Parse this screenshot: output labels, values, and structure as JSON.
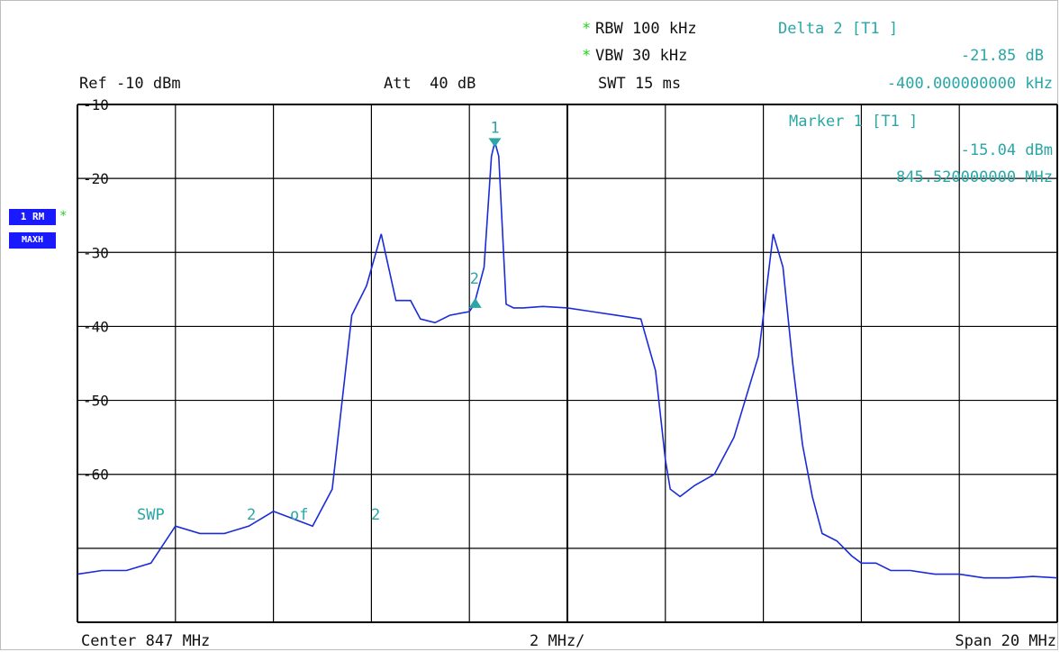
{
  "header": {
    "star1": "*",
    "rbw": "RBW 100 kHz",
    "star2": "*",
    "vbw": "VBW 30 kHz",
    "ref": "Ref -10 dBm",
    "att": "Att  40 dB",
    "swt": "SWT 15 ms",
    "delta_title": "Delta 2 [T1 ]",
    "delta_level": "-21.85 dB",
    "delta_freq": "-400.000000000 kHz"
  },
  "marker1": {
    "title": "Marker 1 [T1 ]",
    "level": "-15.04 dBm",
    "freq": "845.520000000 MHz",
    "label": "1"
  },
  "marker2": {
    "label": "2"
  },
  "side_badges": {
    "trace": "1 RM",
    "star": "*",
    "mode": "MAXH"
  },
  "sweep_text": {
    "swp": "SWP",
    "two": "2",
    "of": "of",
    "total": "2"
  },
  "footer": {
    "center": "Center 847 MHz",
    "div": "2 MHz/",
    "span": "Span 20 MHz"
  },
  "colors": {
    "trace": "#1a2bd8",
    "marker": "#2aa6a6",
    "grid": "#000000",
    "badge": "#1a1aff",
    "star": "#1fd11f"
  },
  "chart_data": {
    "type": "line",
    "title": "",
    "xlabel": "",
    "ylabel": "",
    "x_unit": "MHz",
    "y_unit": "dBm",
    "xlim": [
      837,
      857
    ],
    "ylim": [
      -80,
      -10
    ],
    "y_tick_labels": [
      "-10",
      "-20",
      "-30",
      "-40",
      "-50",
      "-60"
    ],
    "grid": true,
    "series": [
      {
        "x": [
          837.0,
          837.5,
          838.0,
          838.5,
          839.0,
          839.5,
          840.0,
          840.5,
          841.0,
          841.4,
          841.8,
          842.2,
          842.6,
          842.9,
          843.2,
          843.5,
          843.8,
          844.0,
          844.3,
          844.6,
          845.0,
          845.1,
          845.3,
          845.45,
          845.52,
          845.6,
          845.75,
          845.9,
          846.1,
          846.5,
          847.0,
          847.5,
          848.0,
          848.5,
          848.8,
          849.0,
          849.1,
          849.3,
          849.6,
          850.0,
          850.4,
          850.9,
          851.2,
          851.4,
          851.6,
          851.8,
          852.0,
          852.2,
          852.5,
          852.8,
          853.0,
          853.3,
          853.6,
          854.0,
          854.5,
          855.0,
          855.5,
          856.0,
          856.5,
          857.0
        ],
        "y": [
          -73.5,
          -73.0,
          -73.0,
          -72.0,
          -67.0,
          -68.0,
          -68.0,
          -67.0,
          -65.0,
          -66.0,
          -67.0,
          -62.0,
          -38.5,
          -34.5,
          -27.5,
          -36.5,
          -36.5,
          -39.0,
          -39.5,
          -38.5,
          -38.0,
          -37.0,
          -32.0,
          -17.0,
          -15.04,
          -17.0,
          -37.0,
          -37.5,
          -37.5,
          -37.3,
          -37.5,
          -38.0,
          -38.5,
          -39.0,
          -46.0,
          -58.0,
          -62.0,
          -63.0,
          -61.5,
          -60.0,
          -55.0,
          -44.0,
          -27.5,
          -32.0,
          -45.0,
          -56.0,
          -63.0,
          -68.0,
          -69.0,
          -71.0,
          -72.0,
          -72.0,
          -73.0,
          -73.0,
          -73.5,
          -73.5,
          -74.0,
          -74.0,
          -73.8,
          -74.0
        ]
      }
    ],
    "markers": [
      {
        "label": "1",
        "x": 845.52,
        "y": -15.04
      },
      {
        "label": "2",
        "x": 845.12,
        "y": -36.89
      }
    ]
  }
}
